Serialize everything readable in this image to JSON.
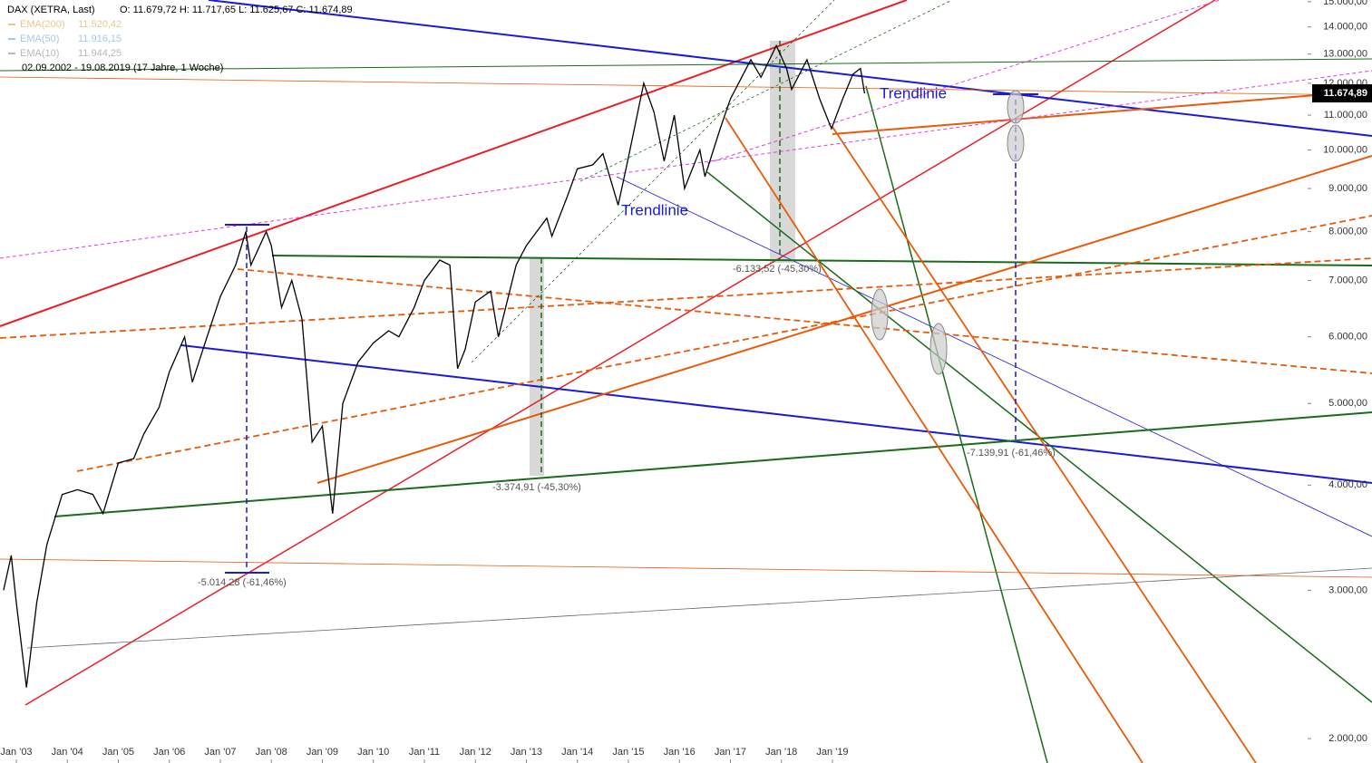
{
  "chart_data": {
    "type": "line",
    "title": "DAX (XETRA, Last)",
    "ohlc": "O: 11.679,72  H: 11.717,65  L: 11.625,67  C: 11.674,89",
    "indicators": [
      {
        "name": "EMA(200)",
        "value_label": "11.520,42",
        "color": "#e8c890"
      },
      {
        "name": "EMA(50)",
        "value_label": "11.916,15",
        "color": "#a8c8e8"
      },
      {
        "name": "EMA(10)",
        "value_label": "11.944,25",
        "color": "#b8b8b8"
      }
    ],
    "subtitle": "02.09.2002 - 19.08.2019   (17 Jahre, 1 Woche)",
    "last_label": "11.674,89",
    "annotations": [
      "Trendlinie",
      "Trendlinie",
      "-5.014,28 (-61,46%)",
      "-3.374,91 (-45,30%)",
      "-6.133,52 (-45,30%)",
      "-7.139,91 (-61,46%)"
    ],
    "color": "#000000",
    "log_scale": true,
    "x": [
      2002.75,
      2002.9,
      2003.0,
      2003.2,
      2003.4,
      2003.6,
      2003.9,
      2004.2,
      2004.5,
      2004.7,
      2005.0,
      2005.3,
      2005.5,
      2005.8,
      2006.0,
      2006.3,
      2006.45,
      2006.7,
      2007.0,
      2007.3,
      2007.5,
      2007.6,
      2007.9,
      2008.0,
      2008.2,
      2008.4,
      2008.6,
      2008.8,
      2009.0,
      2009.2,
      2009.4,
      2009.7,
      2010.0,
      2010.3,
      2010.5,
      2010.8,
      2011.0,
      2011.3,
      2011.5,
      2011.65,
      2011.8,
      2012.0,
      2012.3,
      2012.45,
      2012.8,
      2013.0,
      2013.4,
      2013.5,
      2013.8,
      2014.0,
      2014.3,
      2014.5,
      2014.8,
      2015.0,
      2015.3,
      2015.5,
      2015.7,
      2015.9,
      2016.1,
      2016.4,
      2016.5,
      2016.8,
      2017.0,
      2017.4,
      2017.6,
      2017.9,
      2018.1,
      2018.2,
      2018.5,
      2018.75,
      2018.98,
      2019.2,
      2019.4,
      2019.55,
      2019.63
    ],
    "values": [
      3000,
      3300,
      2900,
      2300,
      2900,
      3400,
      3900,
      3950,
      3900,
      3700,
      4250,
      4300,
      4600,
      4950,
      5450,
      6000,
      5300,
      5900,
      6700,
      7300,
      8000,
      7300,
      8000,
      7700,
      6500,
      7000,
      6300,
      4500,
      4700,
      3700,
      5000,
      5600,
      5900,
      6100,
      6000,
      6500,
      7000,
      7400,
      7300,
      5500,
      5800,
      6600,
      6800,
      6000,
      7300,
      7700,
      8300,
      7900,
      8800,
      9500,
      9600,
      9900,
      8600,
      9800,
      12000,
      11100,
      9700,
      11000,
      9000,
      10000,
      9300,
      10600,
      11500,
      12800,
      12200,
      13300,
      12500,
      11800,
      12800,
      11500,
      10600,
      11500,
      12300,
      12500,
      11675
    ],
    "xlim": [
      2002.68,
      2028.28
    ],
    "xticks": [
      {
        "value": 2003,
        "label": "Jan '03"
      },
      {
        "value": 2004,
        "label": "Jan '04"
      },
      {
        "value": 2005,
        "label": "Jan '05"
      },
      {
        "value": 2006,
        "label": "Jan '06"
      },
      {
        "value": 2007,
        "label": "Jan '07"
      },
      {
        "value": 2008,
        "label": "Jan '08"
      },
      {
        "value": 2009,
        "label": "Jan '09"
      },
      {
        "value": 2010,
        "label": "Jan '10"
      },
      {
        "value": 2011,
        "label": "Jan '11"
      },
      {
        "value": 2012,
        "label": "Jan '12"
      },
      {
        "value": 2013,
        "label": "Jan '13"
      },
      {
        "value": 2014,
        "label": "Jan '14"
      },
      {
        "value": 2015,
        "label": "Jan '15"
      },
      {
        "value": 2016,
        "label": "Jan '16"
      },
      {
        "value": 2017,
        "label": "Jan '17"
      },
      {
        "value": 2018,
        "label": "Jan '18"
      },
      {
        "value": 2019,
        "label": "Jan '19"
      }
    ],
    "ylim": [
      1871,
      15070
    ],
    "yticks": [
      {
        "value": 2000,
        "label": "2.000,00"
      },
      {
        "value": 3000,
        "label": "3.000,00"
      },
      {
        "value": 4000,
        "label": "4.000,00"
      },
      {
        "value": 5000,
        "label": "5.000,00"
      },
      {
        "value": 6000,
        "label": "6.000,00"
      },
      {
        "value": 7000,
        "label": "7.000,00"
      },
      {
        "value": 8000,
        "label": "8.000,00"
      },
      {
        "value": 9000,
        "label": "9.000,00"
      },
      {
        "value": 10000,
        "label": "10.000,00"
      },
      {
        "value": 11000,
        "label": "11.000,00"
      },
      {
        "value": 12000,
        "label": "12.000,00"
      },
      {
        "value": 13000,
        "label": "13.000,00"
      },
      {
        "value": 14000,
        "label": "14.000,00"
      },
      {
        "value": 15000,
        "label": "15.000,00"
      }
    ]
  }
}
